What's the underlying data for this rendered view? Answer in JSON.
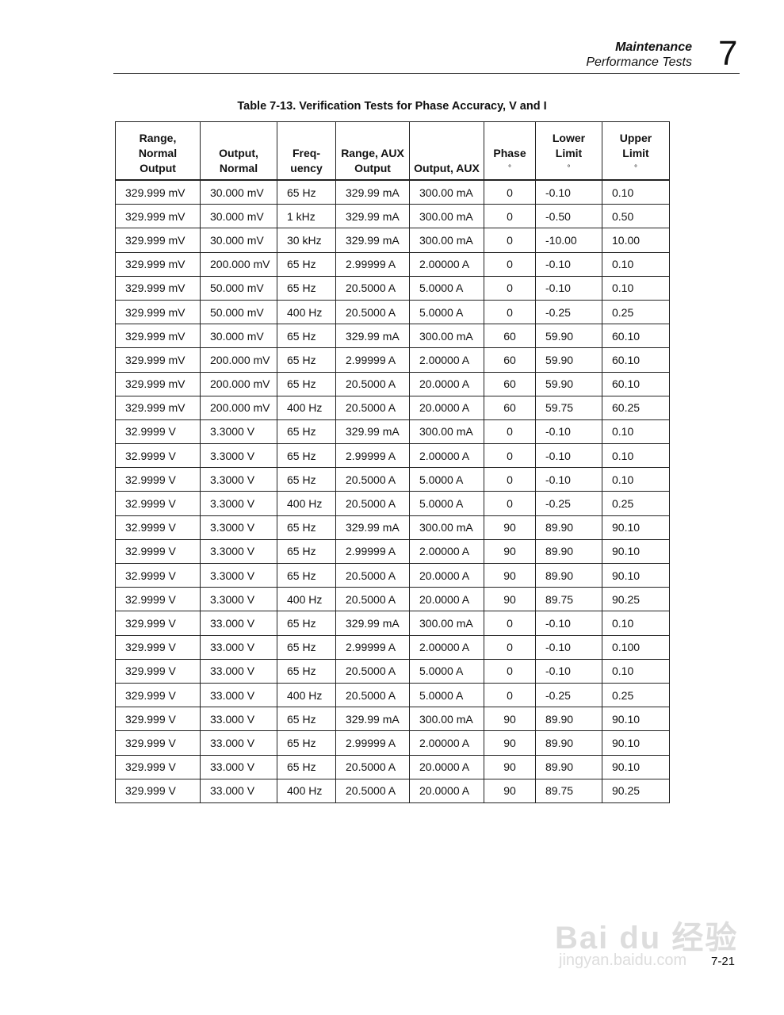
{
  "header": {
    "section": "Maintenance",
    "subsection": "Performance Tests",
    "chapter": "7"
  },
  "caption": "Table 7-13. Verification Tests for Phase Accuracy, V and I",
  "columns": [
    [
      "Range,",
      "Normal",
      "Output"
    ],
    [
      "Output,",
      "Normal"
    ],
    [
      "Freq-",
      "uency"
    ],
    [
      "Range, AUX",
      "Output"
    ],
    [
      "Output, AUX"
    ],
    [
      "Phase",
      "°"
    ],
    [
      "Lower",
      "Limit",
      "°"
    ],
    [
      "Upper",
      "Limit",
      "°"
    ]
  ],
  "rows": [
    [
      "329.999 mV",
      "30.000 mV",
      "65 Hz",
      "329.99 mA",
      "300.00 mA",
      "0",
      "-0.10",
      "0.10"
    ],
    [
      "329.999 mV",
      "30.000 mV",
      "1 kHz",
      "329.99 mA",
      "300.00 mA",
      "0",
      "-0.50",
      "0.50"
    ],
    [
      "329.999 mV",
      "30.000 mV",
      "30 kHz",
      "329.99 mA",
      "300.00 mA",
      "0",
      "-10.00",
      "10.00"
    ],
    [
      "329.999 mV",
      "200.000 mV",
      "65 Hz",
      "2.99999 A",
      "2.00000 A",
      "0",
      "-0.10",
      "0.10"
    ],
    [
      "329.999 mV",
      "50.000 mV",
      "65 Hz",
      "20.5000 A",
      "5.0000 A",
      "0",
      "-0.10",
      "0.10"
    ],
    [
      "329.999 mV",
      "50.000 mV",
      "400 Hz",
      "20.5000 A",
      "5.0000 A",
      "0",
      "-0.25",
      "0.25"
    ],
    [
      "329.999 mV",
      "30.000 mV",
      "65 Hz",
      "329.99 mA",
      "300.00 mA",
      "60",
      "59.90",
      "60.10"
    ],
    [
      "329.999 mV",
      "200.000 mV",
      "65 Hz",
      "2.99999 A",
      "2.00000 A",
      "60",
      "59.90",
      "60.10"
    ],
    [
      "329.999 mV",
      "200.000 mV",
      "65 Hz",
      "20.5000 A",
      "20.0000 A",
      "60",
      "59.90",
      "60.10"
    ],
    [
      "329.999 mV",
      "200.000 mV",
      "400 Hz",
      "20.5000 A",
      "20.0000 A",
      "60",
      "59.75",
      "60.25"
    ],
    [
      "32.9999 V",
      "3.3000 V",
      "65 Hz",
      "329.99 mA",
      "300.00 mA",
      "0",
      "-0.10",
      "0.10"
    ],
    [
      "32.9999 V",
      "3.3000 V",
      "65 Hz",
      "2.99999 A",
      "2.00000 A",
      "0",
      "-0.10",
      "0.10"
    ],
    [
      "32.9999 V",
      "3.3000 V",
      "65 Hz",
      "20.5000 A",
      "5.0000 A",
      "0",
      "-0.10",
      "0.10"
    ],
    [
      "32.9999 V",
      "3.3000 V",
      "400 Hz",
      "20.5000 A",
      "5.0000 A",
      "0",
      "-0.25",
      "0.25"
    ],
    [
      "32.9999 V",
      "3.3000 V",
      "65 Hz",
      "329.99 mA",
      "300.00 mA",
      "90",
      "89.90",
      "90.10"
    ],
    [
      "32.9999 V",
      "3.3000 V",
      "65 Hz",
      "2.99999 A",
      "2.00000 A",
      "90",
      "89.90",
      "90.10"
    ],
    [
      "32.9999 V",
      "3.3000 V",
      "65 Hz",
      "20.5000 A",
      "20.0000 A",
      "90",
      "89.90",
      "90.10"
    ],
    [
      "32.9999 V",
      "3.3000 V",
      "400 Hz",
      "20.5000 A",
      "20.0000 A",
      "90",
      "89.75",
      "90.25"
    ],
    [
      "329.999 V",
      "33.000 V",
      "65 Hz",
      "329.99 mA",
      "300.00 mA",
      "0",
      "-0.10",
      "0.10"
    ],
    [
      "329.999 V",
      "33.000 V",
      "65 Hz",
      "2.99999 A",
      "2.00000 A",
      "0",
      "-0.10",
      "0.100"
    ],
    [
      "329.999 V",
      "33.000 V",
      "65 Hz",
      "20.5000 A",
      "5.0000 A",
      "0",
      "-0.10",
      "0.10"
    ],
    [
      "329.999 V",
      "33.000 V",
      "400 Hz",
      "20.5000 A",
      "5.0000 A",
      "0",
      "-0.25",
      "0.25"
    ],
    [
      "329.999 V",
      "33.000 V",
      "65 Hz",
      "329.99 mA",
      "300.00 mA",
      "90",
      "89.90",
      "90.10"
    ],
    [
      "329.999 V",
      "33.000 V",
      "65 Hz",
      "2.99999 A",
      "2.00000 A",
      "90",
      "89.90",
      "90.10"
    ],
    [
      "329.999 V",
      "33.000 V",
      "65 Hz",
      "20.5000 A",
      "20.0000 A",
      "90",
      "89.90",
      "90.10"
    ],
    [
      "329.999 V",
      "33.000 V",
      "400 Hz",
      "20.5000 A",
      "20.0000 A",
      "90",
      "89.75",
      "90.25"
    ]
  ],
  "page_number": "7-21",
  "watermark": {
    "logo": "Baidu 经验",
    "url": "jingyan.baidu.com"
  }
}
